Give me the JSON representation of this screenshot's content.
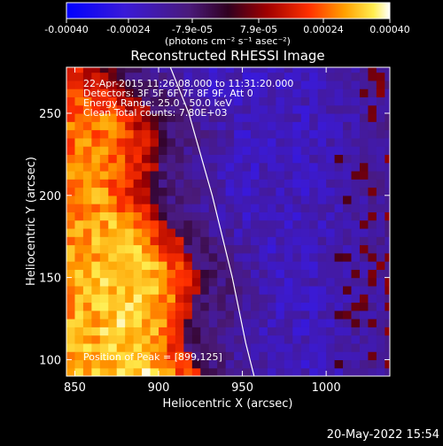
{
  "colorbar": {
    "ticks": [
      "-0.00040",
      "-0.00024",
      "-7.9e-05",
      "7.9e-05",
      "0.00024",
      "0.00040"
    ],
    "unit_label": "(photons cm⁻² s⁻¹ asec⁻²)",
    "range": [
      -0.0004,
      0.0004
    ]
  },
  "chart_data": {
    "type": "heatmap",
    "title": "Reconstructed RHESSI Image",
    "xlabel": "Heliocentric X (arcsec)",
    "ylabel": "Heliocentric Y (arcsec)",
    "xlim": [
      845,
      1038
    ],
    "ylim": [
      90,
      278
    ],
    "x_ticks": [
      850,
      900,
      950,
      1000
    ],
    "y_ticks": [
      100,
      150,
      200,
      250
    ],
    "annotations": [
      "22-Apr-2015 11:26:08.000 to 11:31:20.000",
      "Detectors: 3F 5F 6F 7F 8F 9F, Att 0",
      "Energy Range: 25.0 - 50.0 keV",
      "Clean    Total counts: 7.80E+03"
    ],
    "peak_label": "Position of Peak = [899,125]",
    "peak": [
      899,
      125
    ],
    "limb_curve": {
      "x": [
        907,
        918,
        932,
        944,
        952,
        957
      ],
      "y": [
        278,
        250,
        200,
        150,
        110,
        90
      ]
    },
    "colormap": "blue-purple-red-yellow-white"
  },
  "timestamp": "20-May-2022 15:54"
}
